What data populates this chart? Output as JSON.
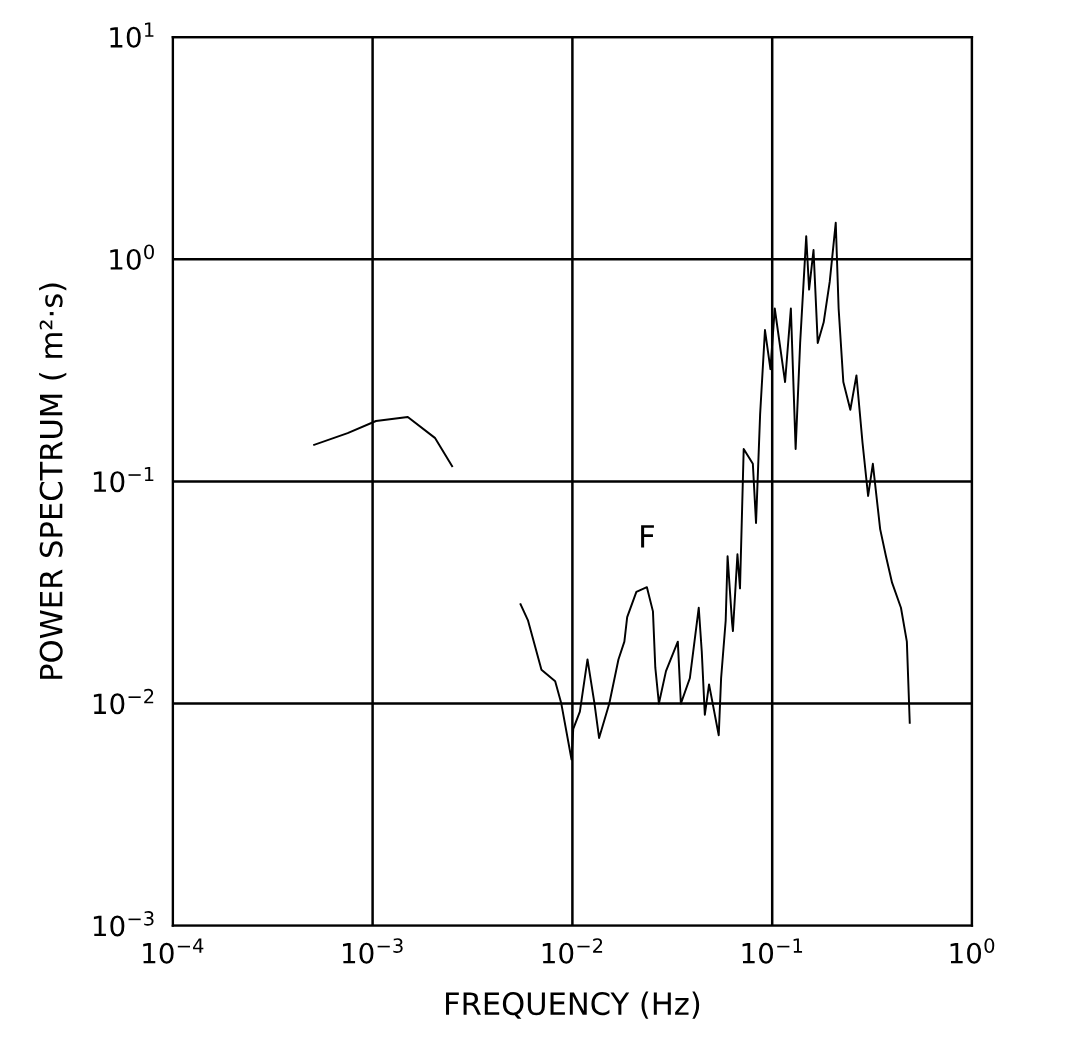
{
  "chart_data": {
    "type": "line",
    "xlabel": "FREQUENCY (Hz)",
    "ylabel": "POWER SPECTRUM ( m²·s)",
    "log": "xy",
    "grid": true,
    "marker": "none",
    "line_style": "solid",
    "xlim": [
      0.0001,
      1
    ],
    "ylim": [
      0.001,
      10
    ],
    "xticks": [
      {
        "value": 0.0001,
        "label": "10$^{−4}$"
      },
      {
        "value": 0.001,
        "label": "10$^{−3}$"
      },
      {
        "value": 0.01,
        "label": "10$^{−2}$"
      },
      {
        "value": 0.1,
        "label": "10$^{−1}$"
      },
      {
        "value": 1,
        "label": "10$^{0}$"
      }
    ],
    "yticks": [
      {
        "value": 0.001,
        "label": "10$^{−3}$"
      },
      {
        "value": 0.01,
        "label": "10$^{−2}$"
      },
      {
        "value": 0.1,
        "label": "10$^{−1}$"
      },
      {
        "value": 1,
        "label": "10$^{0}$"
      },
      {
        "value": 10,
        "label": "10$^{1}$"
      }
    ],
    "annotations": [
      {
        "text": "F",
        "x": 0.0236,
        "y": 0.0334
      }
    ],
    "series": [
      {
        "color": "#000000",
        "x": [
          0.00051,
          0.00075,
          0.00104,
          0.0015,
          0.00205,
          0.0025
        ],
        "values": [
          0.146,
          0.165,
          0.187,
          0.195,
          0.157,
          0.117
        ]
      },
      {
        "color": "#000000",
        "x": [
          0.0055,
          0.006,
          0.007,
          0.0082,
          0.0088,
          0.0099,
          0.0101,
          0.0109,
          0.0119,
          0.0129,
          0.0136,
          0.0153,
          0.017,
          0.0182,
          0.0188,
          0.0209,
          0.0236,
          0.0253,
          0.026,
          0.0271,
          0.0294,
          0.0337,
          0.0349,
          0.0387,
          0.0429,
          0.0444,
          0.046,
          0.0483,
          0.054,
          0.0555,
          0.0585,
          0.0598,
          0.063,
          0.0636,
          0.067,
          0.069,
          0.072,
          0.08,
          0.083,
          0.087,
          0.092,
          0.098,
          0.103,
          0.116,
          0.124,
          0.131,
          0.138,
          0.148,
          0.153,
          0.161,
          0.169,
          0.181,
          0.194,
          0.208,
          0.215,
          0.227,
          0.246,
          0.264,
          0.283,
          0.302,
          0.319,
          0.347,
          0.371,
          0.398,
          0.441,
          0.472,
          0.488
        ],
        "values": [
          0.028,
          0.0236,
          0.0142,
          0.0126,
          0.01,
          0.0056,
          0.0077,
          0.0092,
          0.0158,
          0.01,
          0.007,
          0.01,
          0.0158,
          0.019,
          0.0245,
          0.0318,
          0.0334,
          0.026,
          0.0145,
          0.01,
          0.014,
          0.019,
          0.01,
          0.013,
          0.027,
          0.0172,
          0.0089,
          0.0122,
          0.0072,
          0.013,
          0.0236,
          0.046,
          0.023,
          0.0212,
          0.047,
          0.033,
          0.14,
          0.12,
          0.065,
          0.2,
          0.48,
          0.32,
          0.6,
          0.28,
          0.6,
          0.14,
          0.42,
          1.27,
          0.73,
          1.1,
          0.42,
          0.52,
          0.79,
          1.46,
          0.6,
          0.28,
          0.21,
          0.3,
          0.15,
          0.086,
          0.12,
          0.061,
          0.046,
          0.035,
          0.027,
          0.019,
          0.0082
        ]
      }
    ]
  }
}
